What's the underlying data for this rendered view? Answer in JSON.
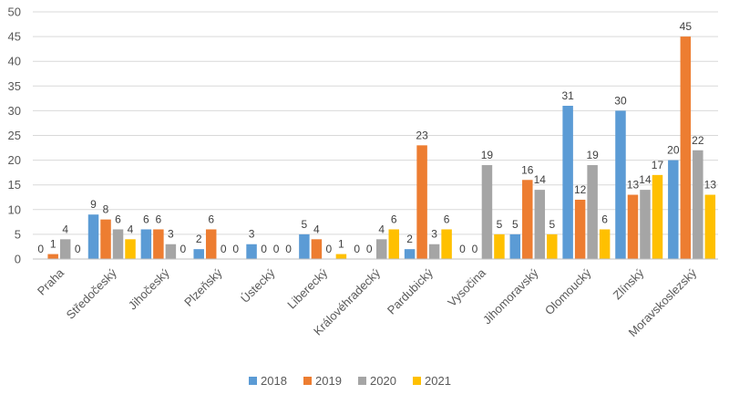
{
  "chart_data": {
    "type": "bar",
    "title": "",
    "xlabel": "",
    "ylabel": "",
    "ylim": [
      0,
      50
    ],
    "yticks": [
      0,
      5,
      10,
      15,
      20,
      25,
      30,
      35,
      40,
      45,
      50
    ],
    "grid": true,
    "legend_position": "bottom",
    "categories": [
      "Praha",
      "Středočeský",
      "Jihočeský",
      "Plzeňský",
      "Ústecký",
      "Liberecký",
      "Královéhradecký",
      "Pardubický",
      "Vysočina",
      "Jihomoravský",
      "Olomoucký",
      "Zlínský",
      "Moravskoslezský"
    ],
    "series": [
      {
        "name": "2018",
        "color": "#5b9bd5",
        "values": [
          0,
          9,
          6,
          2,
          3,
          5,
          0,
          2,
          0,
          5,
          31,
          30,
          20
        ]
      },
      {
        "name": "2019",
        "color": "#ed7d31",
        "values": [
          1,
          8,
          6,
          6,
          0,
          4,
          0,
          23,
          0,
          16,
          12,
          13,
          45
        ]
      },
      {
        "name": "2020",
        "color": "#a5a5a5",
        "values": [
          4,
          6,
          3,
          0,
          0,
          0,
          4,
          3,
          19,
          14,
          19,
          14,
          22
        ]
      },
      {
        "name": "2021",
        "color": "#ffc000",
        "values": [
          0,
          4,
          0,
          0,
          0,
          1,
          6,
          6,
          5,
          5,
          6,
          17,
          13
        ]
      }
    ]
  }
}
